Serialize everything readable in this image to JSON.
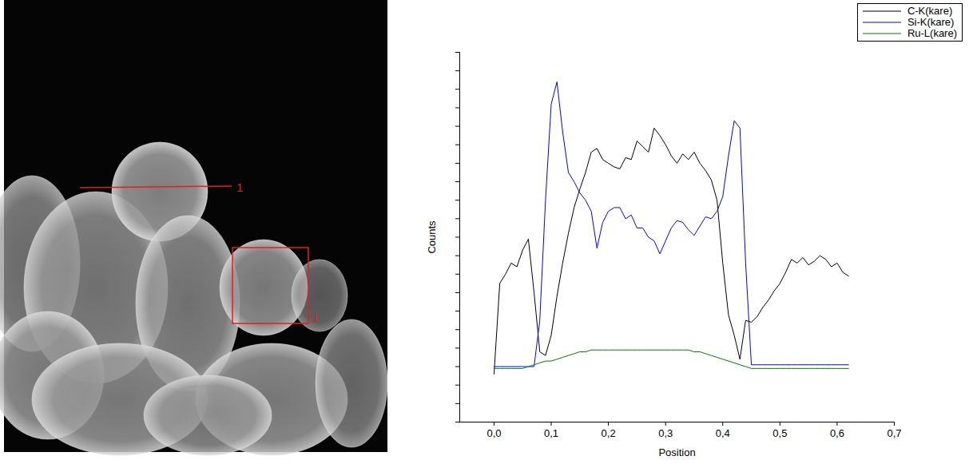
{
  "chart_data": {
    "type": "line",
    "x_label": "Position",
    "y_label": "Counts",
    "xlim": [
      -0.06,
      0.7
    ],
    "xticks": [
      {
        "value": 0,
        "label": "0,0"
      },
      {
        "value": 0.1,
        "label": "0,1"
      },
      {
        "value": 0.2,
        "label": "0,2"
      },
      {
        "value": 0.3,
        "label": "0,3"
      },
      {
        "value": 0.4,
        "label": "0,4"
      },
      {
        "value": 0.5,
        "label": "0,5"
      },
      {
        "value": 0.6,
        "label": "0,6"
      },
      {
        "value": 0.7,
        "label": "0,7"
      }
    ],
    "ylim": [
      0,
      20
    ],
    "yticks": [
      0,
      1,
      2,
      3,
      4,
      5,
      6,
      7,
      8,
      9,
      10,
      11,
      12,
      13,
      14,
      15,
      16,
      17,
      18,
      19,
      20
    ],
    "tick_labels": "x",
    "grid": false,
    "legend": "top-right",
    "x": [
      0,
      0.01,
      0.02,
      0.03,
      0.04,
      0.05,
      0.06,
      0.07,
      0.08,
      0.09,
      0.1,
      0.11,
      0.12,
      0.13,
      0.14,
      0.15,
      0.16,
      0.17,
      0.18,
      0.19,
      0.2,
      0.21,
      0.22,
      0.23,
      0.24,
      0.25,
      0.26,
      0.27,
      0.28,
      0.29,
      0.3,
      0.31,
      0.32,
      0.33,
      0.34,
      0.35,
      0.36,
      0.37,
      0.38,
      0.39,
      0.4,
      0.41,
      0.42,
      0.43,
      0.44,
      0.45,
      0.46,
      0.47,
      0.48,
      0.49,
      0.5,
      0.51,
      0.52,
      0.53,
      0.54,
      0.55,
      0.56,
      0.57,
      0.58,
      0.59,
      0.6,
      0.61,
      0.62
    ],
    "series": [
      {
        "name": "C-K(kare)",
        "color": "#000000",
        "values": [
          2.6,
          7.5,
          8.0,
          8.6,
          8.4,
          9.3,
          9.9,
          7.0,
          3.8,
          3.6,
          4.7,
          6.8,
          8.6,
          10.2,
          11.6,
          12.6,
          13.5,
          14.6,
          14.8,
          14.2,
          14.0,
          13.8,
          13.7,
          14.3,
          14.2,
          15.2,
          14.9,
          14.6,
          15.9,
          15.5,
          15.0,
          14.4,
          14.0,
          14.5,
          14.2,
          14.6,
          14.0,
          13.6,
          13.1,
          12.0,
          8.6,
          5.8,
          4.7,
          3.4,
          5.5,
          5.4,
          5.7,
          6.2,
          6.6,
          7.1,
          7.5,
          8.1,
          8.8,
          8.6,
          8.9,
          8.5,
          8.7,
          9.0,
          8.8,
          8.4,
          8.6,
          8.1,
          7.9
        ]
      },
      {
        "name": "Si-K(kare)",
        "color": "#0000ff",
        "values": [
          3.0,
          3.0,
          3.0,
          3.0,
          3.0,
          3.0,
          3.0,
          3.0,
          5.5,
          12.0,
          17.2,
          18.4,
          15.7,
          13.5,
          13.0,
          12.4,
          12.0,
          11.4,
          9.4,
          10.8,
          11.4,
          11.6,
          11.6,
          11.0,
          11.2,
          10.5,
          10.5,
          10.0,
          9.8,
          9.1,
          9.8,
          10.5,
          10.9,
          10.8,
          10.4,
          10.1,
          10.6,
          11.1,
          11.0,
          11.4,
          12.2,
          14.4,
          16.3,
          15.9,
          8.6,
          3.1,
          3.1,
          3.1,
          3.1,
          3.1,
          3.1,
          3.1,
          3.1,
          3.1,
          3.1,
          3.1,
          3.1,
          3.1,
          3.1,
          3.1,
          3.1,
          3.1,
          3.1
        ]
      },
      {
        "name": "Ru-L(kare)",
        "color": "#008000",
        "values": [
          2.9,
          2.9,
          2.9,
          2.9,
          2.9,
          2.9,
          3.0,
          3.1,
          3.2,
          3.3,
          3.3,
          3.4,
          3.5,
          3.6,
          3.7,
          3.8,
          3.8,
          3.9,
          3.9,
          3.9,
          3.9,
          3.9,
          3.9,
          3.9,
          3.9,
          3.9,
          3.9,
          3.9,
          3.9,
          3.9,
          3.9,
          3.9,
          3.9,
          3.9,
          3.9,
          3.8,
          3.8,
          3.7,
          3.6,
          3.5,
          3.4,
          3.3,
          3.2,
          3.1,
          3.0,
          2.9,
          2.9,
          2.9,
          2.9,
          2.9,
          2.9,
          2.9,
          2.9,
          2.9,
          2.9,
          2.9,
          2.9,
          2.9,
          2.9,
          2.9,
          2.9,
          2.9,
          2.9
        ]
      }
    ]
  },
  "micrograph": {
    "line_label": "1",
    "box_label": "1"
  }
}
